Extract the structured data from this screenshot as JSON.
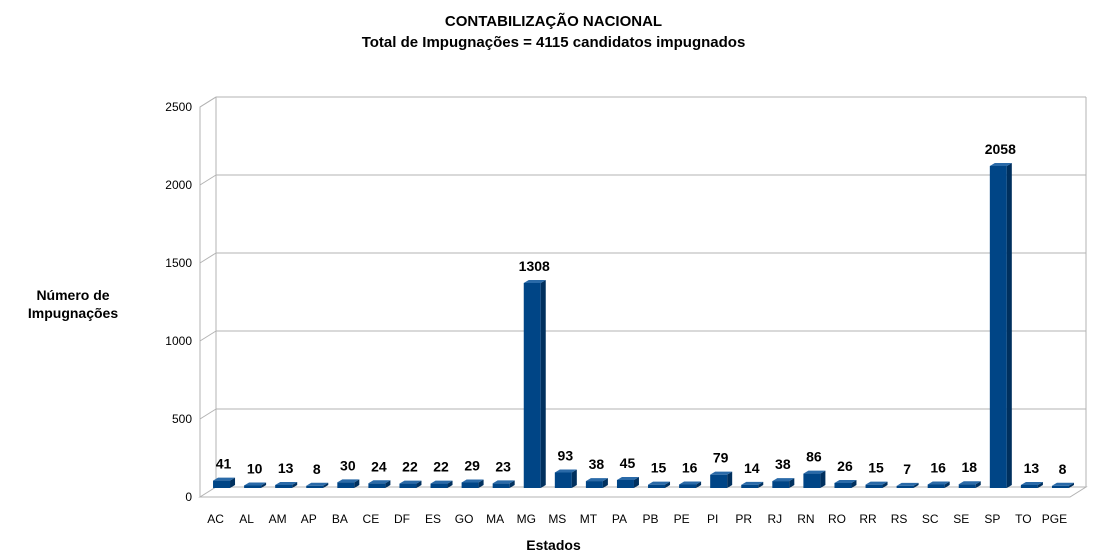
{
  "chart_data": {
    "type": "bar",
    "title": "CONTABILIZAÇÃO NACIONAL",
    "subtitle": "Total de Impugnações = 4115 candidatos impugnados",
    "xlabel": "Estados",
    "ylabel_line1": "Número de",
    "ylabel_line2": "Impugnações",
    "ylim": [
      0,
      2500
    ],
    "yticks": [
      0,
      500,
      1000,
      1500,
      2000,
      2500
    ],
    "grid": true,
    "bar_color": "#004586",
    "categories": [
      "AC",
      "AL",
      "AM",
      "AP",
      "BA",
      "CE",
      "DF",
      "ES",
      "GO",
      "MA",
      "MG",
      "MS",
      "MT",
      "PA",
      "PB",
      "PE",
      "PI",
      "PR",
      "RJ",
      "RN",
      "RO",
      "RR",
      "RS",
      "SC",
      "SE",
      "SP",
      "TO",
      "PGE"
    ],
    "values": [
      41,
      10,
      13,
      8,
      30,
      24,
      22,
      22,
      29,
      23,
      1308,
      93,
      38,
      45,
      15,
      16,
      79,
      14,
      38,
      86,
      26,
      15,
      7,
      16,
      18,
      2058,
      13,
      8
    ]
  }
}
